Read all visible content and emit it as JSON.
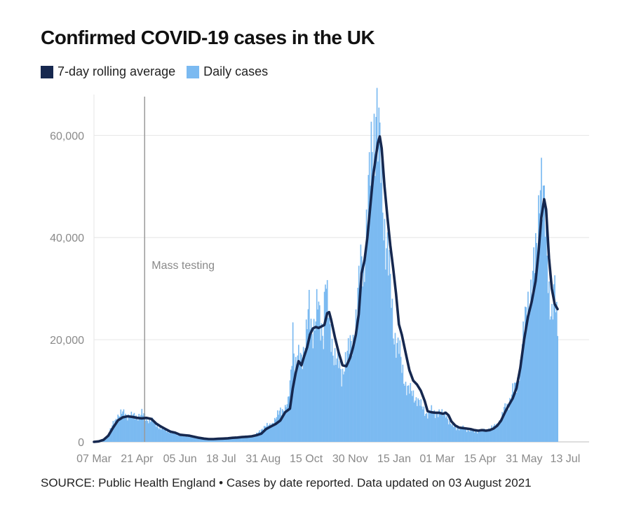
{
  "title": "Confirmed COVID-19 cases in the UK",
  "legend": [
    {
      "label": "7-day rolling average",
      "color": "#16284f"
    },
    {
      "label": "Daily cases",
      "color": "#7bbaf1"
    }
  ],
  "source": "SOURCE: Public Health England • Cases by date reported. Data updated on 03 August 2021",
  "chart_data": {
    "type": "bar",
    "title": "Confirmed COVID-19 cases in the UK",
    "xlabel": "",
    "ylabel": "",
    "ylim": [
      0,
      68000
    ],
    "y_ticks": [
      0,
      20000,
      40000,
      60000
    ],
    "y_tick_labels": [
      "0",
      "20,000",
      "40,000",
      "60,000"
    ],
    "x_range_days": [
      0,
      518
    ],
    "x_ticks": [
      {
        "day": 0,
        "label": "07 Mar"
      },
      {
        "day": 45,
        "label": "21 Apr"
      },
      {
        "day": 90,
        "label": "05 Jun"
      },
      {
        "day": 133,
        "label": "18 Jul"
      },
      {
        "day": 177,
        "label": "31 Aug"
      },
      {
        "day": 222,
        "label": "15 Oct"
      },
      {
        "day": 268,
        "label": "30 Nov"
      },
      {
        "day": 314,
        "label": "15 Jan"
      },
      {
        "day": 359,
        "label": "01 Mar"
      },
      {
        "day": 404,
        "label": "15 Apr"
      },
      {
        "day": 450,
        "label": "31 May"
      },
      {
        "day": 493,
        "label": "13 Jul"
      }
    ],
    "annotation": {
      "day": 53,
      "label": "Mass testing"
    },
    "series": [
      {
        "name": "7-day rolling average",
        "kind": "line",
        "points": [
          [
            0,
            0
          ],
          [
            5,
            100
          ],
          [
            10,
            400
          ],
          [
            15,
            1200
          ],
          [
            20,
            2800
          ],
          [
            25,
            4200
          ],
          [
            30,
            4800
          ],
          [
            35,
            5000
          ],
          [
            40,
            4900
          ],
          [
            45,
            4700
          ],
          [
            50,
            4600
          ],
          [
            55,
            4700
          ],
          [
            60,
            4500
          ],
          [
            65,
            3600
          ],
          [
            70,
            3000
          ],
          [
            75,
            2500
          ],
          [
            80,
            2000
          ],
          [
            85,
            1800
          ],
          [
            90,
            1400
          ],
          [
            95,
            1300
          ],
          [
            100,
            1200
          ],
          [
            105,
            1000
          ],
          [
            110,
            800
          ],
          [
            115,
            650
          ],
          [
            120,
            550
          ],
          [
            125,
            550
          ],
          [
            130,
            600
          ],
          [
            135,
            650
          ],
          [
            140,
            700
          ],
          [
            145,
            800
          ],
          [
            150,
            850
          ],
          [
            155,
            950
          ],
          [
            160,
            1000
          ],
          [
            165,
            1100
          ],
          [
            170,
            1300
          ],
          [
            175,
            1600
          ],
          [
            180,
            2500
          ],
          [
            185,
            3000
          ],
          [
            190,
            3500
          ],
          [
            195,
            4200
          ],
          [
            200,
            5800
          ],
          [
            205,
            6500
          ],
          [
            208,
            10500
          ],
          [
            211,
            13500
          ],
          [
            214,
            15800
          ],
          [
            217,
            15000
          ],
          [
            220,
            16800
          ],
          [
            223,
            18500
          ],
          [
            226,
            21000
          ],
          [
            229,
            22200
          ],
          [
            232,
            22500
          ],
          [
            235,
            22300
          ],
          [
            238,
            22600
          ],
          [
            241,
            22900
          ],
          [
            244,
            25200
          ],
          [
            246,
            25400
          ],
          [
            248,
            24000
          ],
          [
            252,
            20500
          ],
          [
            256,
            17500
          ],
          [
            260,
            15000
          ],
          [
            264,
            14800
          ],
          [
            268,
            16500
          ],
          [
            271,
            18500
          ],
          [
            274,
            21000
          ],
          [
            277,
            25000
          ],
          [
            280,
            33000
          ],
          [
            283,
            35500
          ],
          [
            286,
            40000
          ],
          [
            289,
            46000
          ],
          [
            292,
            52000
          ],
          [
            295,
            56000
          ],
          [
            297,
            58500
          ],
          [
            299,
            59800
          ],
          [
            301,
            57500
          ],
          [
            304,
            50000
          ],
          [
            307,
            44000
          ],
          [
            310,
            38500
          ],
          [
            313,
            34000
          ],
          [
            316,
            29000
          ],
          [
            319,
            23000
          ],
          [
            322,
            21000
          ],
          [
            326,
            17500
          ],
          [
            330,
            14000
          ],
          [
            334,
            12000
          ],
          [
            338,
            11200
          ],
          [
            342,
            10000
          ],
          [
            346,
            8000
          ],
          [
            349,
            6000
          ],
          [
            353,
            5800
          ],
          [
            357,
            5700
          ],
          [
            361,
            5700
          ],
          [
            365,
            5500
          ],
          [
            368,
            5700
          ],
          [
            371,
            5200
          ],
          [
            374,
            4000
          ],
          [
            378,
            3200
          ],
          [
            382,
            2800
          ],
          [
            386,
            2700
          ],
          [
            390,
            2600
          ],
          [
            394,
            2500
          ],
          [
            398,
            2300
          ],
          [
            402,
            2200
          ],
          [
            406,
            2300
          ],
          [
            410,
            2200
          ],
          [
            414,
            2300
          ],
          [
            418,
            2600
          ],
          [
            422,
            3200
          ],
          [
            426,
            4200
          ],
          [
            430,
            5800
          ],
          [
            434,
            7200
          ],
          [
            438,
            8500
          ],
          [
            442,
            10500
          ],
          [
            446,
            14500
          ],
          [
            450,
            20000
          ],
          [
            454,
            24500
          ],
          [
            458,
            27500
          ],
          [
            462,
            31500
          ],
          [
            465,
            37000
          ],
          [
            468,
            44000
          ],
          [
            471,
            47500
          ],
          [
            473,
            45500
          ],
          [
            476,
            36000
          ],
          [
            479,
            30000
          ],
          [
            482,
            27000
          ],
          [
            485,
            26000
          ]
        ]
      },
      {
        "name": "Daily cases",
        "kind": "bars",
        "points": [
          [
            0,
            50
          ],
          [
            5,
            150
          ],
          [
            10,
            500
          ],
          [
            15,
            1500
          ],
          [
            20,
            3500
          ],
          [
            25,
            5200
          ],
          [
            30,
            5600
          ],
          [
            35,
            5200
          ],
          [
            40,
            5000
          ],
          [
            45,
            5000
          ],
          [
            50,
            5500
          ],
          [
            55,
            4500
          ],
          [
            60,
            4200
          ],
          [
            65,
            3400
          ],
          [
            70,
            2600
          ],
          [
            75,
            2300
          ],
          [
            80,
            1900
          ],
          [
            85,
            1600
          ],
          [
            90,
            1300
          ],
          [
            95,
            1100
          ],
          [
            100,
            1100
          ],
          [
            105,
            900
          ],
          [
            110,
            700
          ],
          [
            115,
            650
          ],
          [
            120,
            600
          ],
          [
            125,
            600
          ],
          [
            130,
            650
          ],
          [
            135,
            700
          ],
          [
            140,
            750
          ],
          [
            145,
            850
          ],
          [
            150,
            950
          ],
          [
            155,
            1000
          ],
          [
            160,
            1100
          ],
          [
            165,
            1200
          ],
          [
            170,
            1500
          ],
          [
            175,
            2500
          ],
          [
            180,
            3000
          ],
          [
            185,
            3500
          ],
          [
            190,
            4300
          ],
          [
            195,
            6500
          ],
          [
            200,
            6300
          ],
          [
            203,
            7500
          ],
          [
            206,
            14000
          ],
          [
            208,
            23000
          ],
          [
            210,
            13500
          ],
          [
            213,
            16000
          ],
          [
            216,
            17000
          ],
          [
            219,
            18000
          ],
          [
            222,
            20500
          ],
          [
            225,
            26000
          ],
          [
            228,
            22000
          ],
          [
            231,
            23500
          ],
          [
            234,
            26500
          ],
          [
            237,
            22500
          ],
          [
            240,
            22000
          ],
          [
            242,
            33500
          ],
          [
            244,
            27000
          ],
          [
            247,
            21000
          ],
          [
            250,
            18500
          ],
          [
            253,
            16500
          ],
          [
            256,
            15000
          ],
          [
            259,
            12500
          ],
          [
            262,
            16000
          ],
          [
            265,
            17000
          ],
          [
            268,
            18500
          ],
          [
            271,
            20000
          ],
          [
            274,
            24000
          ],
          [
            277,
            30000
          ],
          [
            280,
            36000
          ],
          [
            282,
            34000
          ],
          [
            285,
            42000
          ],
          [
            288,
            50000
          ],
          [
            290,
            55000
          ],
          [
            292,
            61000
          ],
          [
            294,
            62000
          ],
          [
            295,
            68000
          ],
          [
            297,
            60000
          ],
          [
            299,
            56000
          ],
          [
            301,
            50000
          ],
          [
            304,
            42000
          ],
          [
            307,
            38000
          ],
          [
            310,
            30000
          ],
          [
            313,
            22000
          ],
          [
            316,
            20000
          ],
          [
            319,
            18500
          ],
          [
            322,
            14000
          ],
          [
            326,
            11500
          ],
          [
            330,
            10000
          ],
          [
            334,
            9000
          ],
          [
            338,
            8500
          ],
          [
            342,
            7000
          ],
          [
            346,
            6000
          ],
          [
            349,
            5500
          ],
          [
            353,
            6000
          ],
          [
            357,
            5600
          ],
          [
            361,
            5800
          ],
          [
            365,
            5200
          ],
          [
            368,
            5800
          ],
          [
            371,
            4000
          ],
          [
            374,
            3200
          ],
          [
            378,
            2900
          ],
          [
            382,
            2600
          ],
          [
            386,
            2700
          ],
          [
            390,
            2400
          ],
          [
            394,
            2200
          ],
          [
            398,
            2000
          ],
          [
            402,
            2100
          ],
          [
            406,
            2200
          ],
          [
            410,
            2300
          ],
          [
            414,
            2600
          ],
          [
            418,
            2900
          ],
          [
            422,
            3600
          ],
          [
            426,
            4400
          ],
          [
            430,
            6800
          ],
          [
            434,
            7500
          ],
          [
            438,
            9800
          ],
          [
            442,
            11000
          ],
          [
            446,
            15000
          ],
          [
            450,
            22000
          ],
          [
            454,
            28000
          ],
          [
            458,
            30000
          ],
          [
            462,
            36000
          ],
          [
            464,
            40000
          ],
          [
            466,
            52000
          ],
          [
            467,
            55000
          ],
          [
            469,
            48000
          ],
          [
            471,
            44000
          ],
          [
            473,
            40000
          ],
          [
            476,
            30000
          ],
          [
            479,
            25000
          ],
          [
            482,
            29000
          ],
          [
            485,
            21500
          ]
        ]
      }
    ]
  }
}
